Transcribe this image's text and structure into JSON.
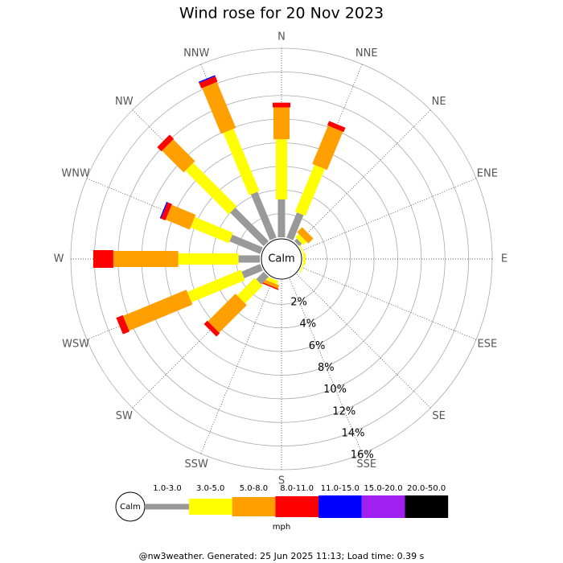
{
  "chart_data": {
    "type": "windrose",
    "title": "Wind rose for 20 Nov 2023",
    "directions": [
      "N",
      "NNE",
      "NE",
      "ENE",
      "E",
      "ESE",
      "SE",
      "SSE",
      "S",
      "SSW",
      "SW",
      "WSW",
      "W",
      "WNW",
      "NW",
      "NNW"
    ],
    "calm_label": "Calm",
    "unit": "mph",
    "rlim": [
      0,
      16
    ],
    "rticks": [
      {
        "value": 2,
        "label": "2%"
      },
      {
        "value": 4,
        "label": "4%"
      },
      {
        "value": 6,
        "label": "6%"
      },
      {
        "value": 8,
        "label": "8%"
      },
      {
        "value": 10,
        "label": "10%"
      },
      {
        "value": 12,
        "label": "12%"
      },
      {
        "value": 14,
        "label": "14%"
      },
      {
        "value": 16,
        "label": "16%"
      }
    ],
    "series": [
      {
        "name": "1.0-3.0",
        "color": "#999999",
        "values": [
          3.2,
          2.3,
          0.3,
          0,
          0,
          0,
          0,
          0,
          0,
          0,
          0.9,
          1.7,
          1.8,
          2.8,
          4.0,
          4.2
        ]
      },
      {
        "name": "3.0-5.0",
        "color": "#ffff00",
        "values": [
          5.1,
          4.3,
          0.4,
          0.1,
          0.2,
          0.1,
          0,
          0,
          0,
          0.3,
          2.1,
          4.9,
          5.1,
          3.5,
          5.2,
          5.7
        ]
      },
      {
        "name": "5.0-8.0",
        "color": "#ffa000",
        "values": [
          2.7,
          3.5,
          0.6,
          0,
          0,
          0,
          0,
          0,
          0,
          0.3,
          3.3,
          5.8,
          5.5,
          2.2,
          2.6,
          4.2
        ]
      },
      {
        "name": "8.0-11.0",
        "color": "#ff0000",
        "values": [
          0.4,
          0.4,
          0,
          0,
          0,
          0,
          0,
          0,
          0,
          0.1,
          0.4,
          0.6,
          1.7,
          0.4,
          0.5,
          0.5
        ]
      },
      {
        "name": "11.0-15.0",
        "color": "#0000ff",
        "values": [
          0,
          0,
          0,
          0,
          0,
          0,
          0,
          0,
          0,
          0,
          0,
          0,
          0,
          0.1,
          0,
          0.1
        ]
      },
      {
        "name": "15.0-20.0",
        "color": "#a020f0",
        "values": [
          0,
          0,
          0,
          0,
          0,
          0,
          0,
          0,
          0,
          0,
          0,
          0,
          0,
          0,
          0,
          0
        ]
      },
      {
        "name": "20.0-50.0",
        "color": "#000000",
        "values": [
          0,
          0,
          0,
          0,
          0,
          0,
          0,
          0,
          0,
          0,
          0,
          0,
          0,
          0,
          0,
          0
        ]
      }
    ],
    "footer": "@nw3weather. Generated: 25 Jun 2025 11:13; Load time: 0.39 s"
  }
}
